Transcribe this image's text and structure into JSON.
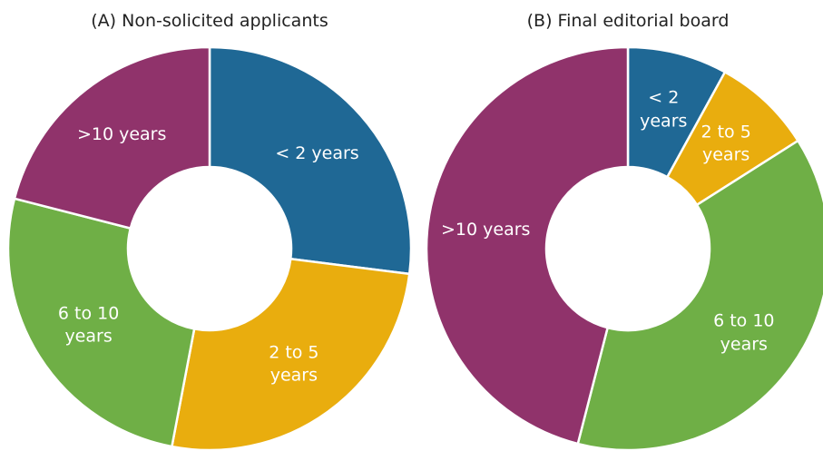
{
  "chart_data": [
    {
      "type": "donut",
      "title": "(A)  Non-solicited applicants",
      "categories": [
        "< 2 years",
        "2 to 5 years",
        "6 to 10 years",
        ">10 years"
      ],
      "values": [
        27,
        26,
        26,
        21
      ],
      "colors": [
        "#1f6895",
        "#e9ad0e",
        "#6faf46",
        "#90336b"
      ]
    },
    {
      "type": "donut",
      "title": "(B)  Final editorial board",
      "categories": [
        "< 2 years",
        "2 to 5 years",
        "6 to 10 years",
        ">10 years"
      ],
      "values": [
        8,
        8,
        38,
        46
      ],
      "colors": [
        "#1f6895",
        "#e9ad0e",
        "#6faf46",
        "#90336b"
      ]
    }
  ]
}
